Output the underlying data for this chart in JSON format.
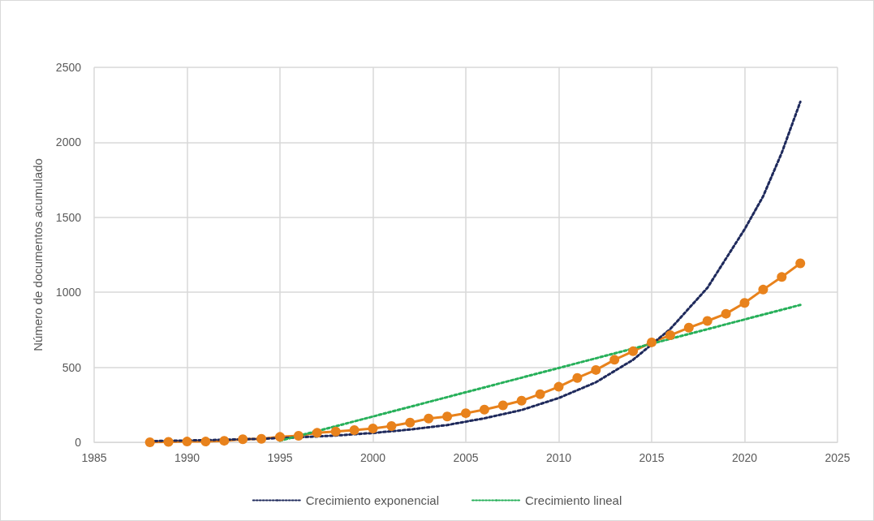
{
  "chart_data": {
    "type": "line",
    "ylabel": "Número de documentos acumulado",
    "xlim": [
      1985,
      2025
    ],
    "xticks": [
      1985,
      1990,
      1995,
      2000,
      2005,
      2010,
      2015,
      2020,
      2025
    ],
    "ylim": [
      0,
      2500
    ],
    "yticks": [
      0,
      500,
      1000,
      1500,
      2000,
      2500
    ],
    "grid": true,
    "legend": "bottom",
    "series": [
      {
        "color": "#e8821c",
        "marker": "circle",
        "line_style": "solid",
        "x": [
          1988,
          1989,
          1990,
          1991,
          1992,
          1993,
          1994,
          1995,
          1996,
          1997,
          1998,
          1999,
          2000,
          2001,
          2002,
          2003,
          2004,
          2005,
          2006,
          2007,
          2008,
          2009,
          2010,
          2011,
          2012,
          2013,
          2014,
          2015,
          2016,
          2017,
          2018,
          2019,
          2020,
          2021,
          2022,
          2023
        ],
        "values": [
          0,
          3,
          5,
          5,
          10,
          20,
          23,
          36,
          43,
          63,
          72,
          81,
          92,
          108,
          131,
          158,
          172,
          194,
          218,
          246,
          277,
          321,
          370,
          429,
          482,
          550,
          607,
          666,
          714,
          764,
          809,
          857,
          929,
          1018,
          1102,
          1193
        ]
      },
      {
        "name": "Crecimiento exponencial",
        "color": "#1f2a5c",
        "marker": "none",
        "line_style": "dotted",
        "x": [
          1988,
          1990,
          1992,
          1994,
          1996,
          1998,
          2000,
          2002,
          2004,
          2006,
          2008,
          2010,
          2012,
          2014,
          2016,
          2018,
          2020,
          2021,
          2022,
          2023
        ],
        "values": [
          8,
          12,
          17,
          23,
          33,
          45,
          62,
          85,
          115,
          160,
          215,
          295,
          400,
          550,
          755,
          1030,
          1420,
          1640,
          1930,
          2270
        ]
      },
      {
        "name": "Crecimiento lineal",
        "color": "#27b05a",
        "marker": "none",
        "line_style": "dotted",
        "x": [
          1995,
          2023
        ],
        "values": [
          10,
          916
        ]
      }
    ]
  }
}
